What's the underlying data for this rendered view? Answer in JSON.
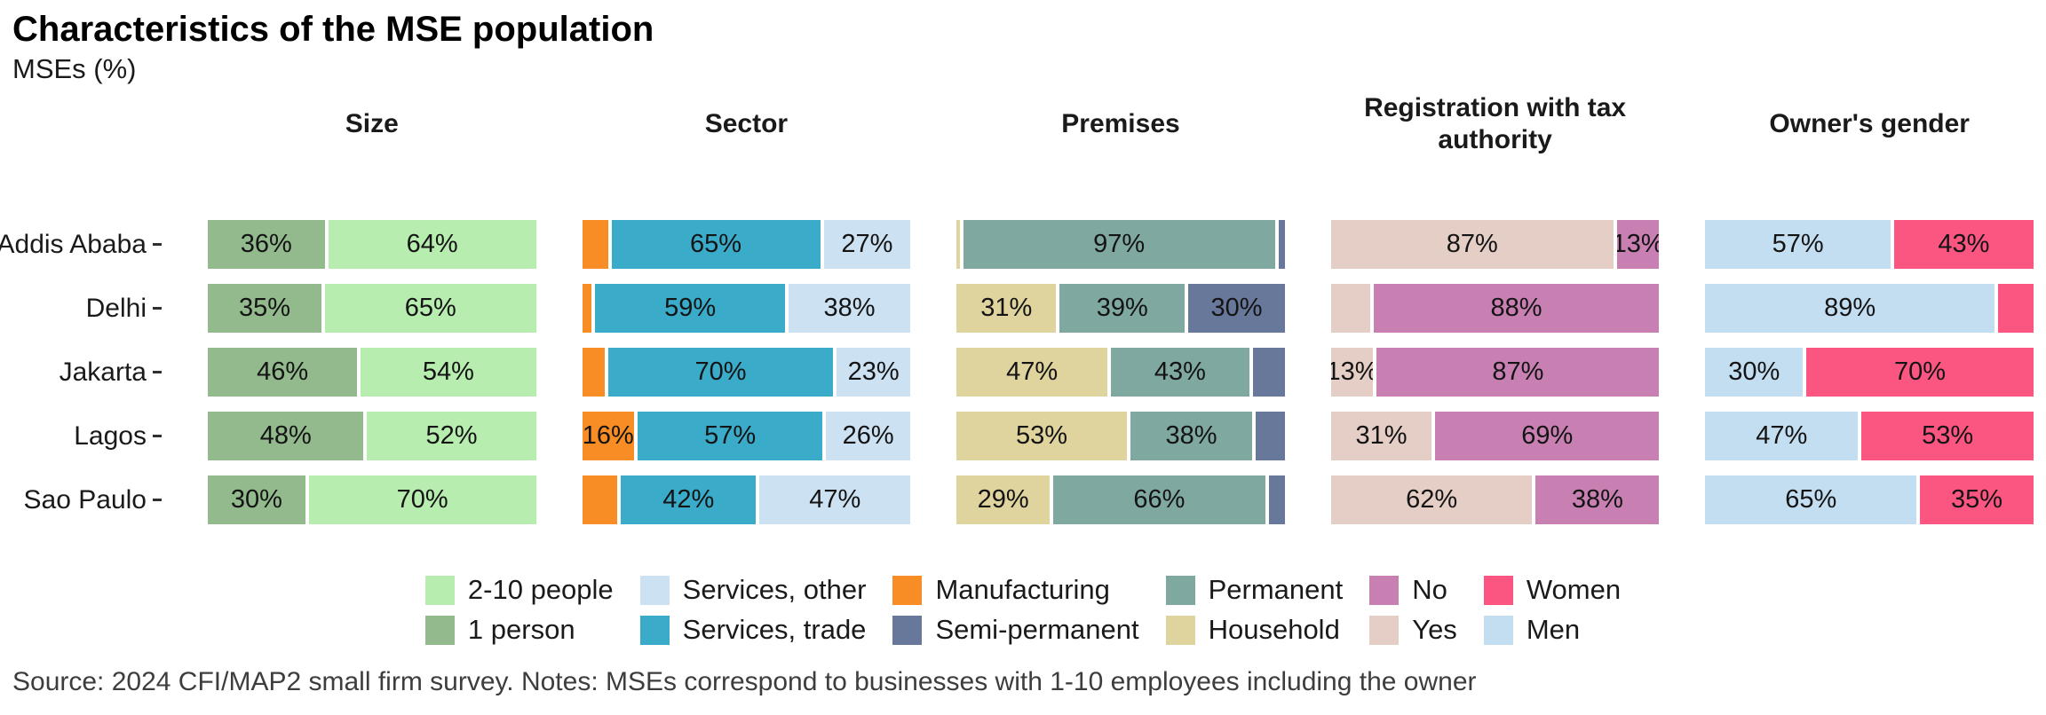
{
  "header": {
    "title": "Characteristics of the MSE population",
    "subtitle": "MSEs (%)"
  },
  "footer": {
    "source": "Source: 2024 CFI/MAP2 small firm survey. Notes: MSEs correspond to businesses with 1-10 employees including the owner"
  },
  "chart_data": {
    "type": "bar",
    "variant": "horizontal-stacked-percent",
    "unit": "%",
    "title": "Characteristics of the MSE population",
    "subtitle": "MSEs (%)",
    "categories": [
      "Addis Ababa",
      "Delhi",
      "Jakarta",
      "Lagos",
      "Sao Paulo"
    ],
    "axes": {
      "x_range": [
        0,
        100
      ],
      "grid": false,
      "value_labels_inside": true
    },
    "panels": [
      {
        "title": "Size",
        "series": [
          {
            "name": "1 person",
            "color": "#92BA8D"
          },
          {
            "name": "2-10 people",
            "color": "#B7EDAE"
          }
        ],
        "rows": [
          {
            "values": [
              36,
              64
            ],
            "labels": [
              "36%",
              "64%"
            ]
          },
          {
            "values": [
              35,
              65
            ],
            "labels": [
              "35%",
              "65%"
            ]
          },
          {
            "values": [
              46,
              54
            ],
            "labels": [
              "46%",
              "54%"
            ]
          },
          {
            "values": [
              48,
              52
            ],
            "labels": [
              "48%",
              "52%"
            ]
          },
          {
            "values": [
              30,
              70
            ],
            "labels": [
              "30%",
              "70%"
            ]
          }
        ]
      },
      {
        "title": "Sector",
        "series": [
          {
            "name": "Manufacturing",
            "color": "#F78D24"
          },
          {
            "name": "Services, trade",
            "color": "#3AACC9"
          },
          {
            "name": "Services, other",
            "color": "#CCE1F2"
          }
        ],
        "rows": [
          {
            "values": [
              8,
              65,
              27
            ],
            "labels": [
              null,
              "65%",
              "27%"
            ]
          },
          {
            "values": [
              3,
              59,
              38
            ],
            "labels": [
              null,
              "59%",
              "38%"
            ]
          },
          {
            "values": [
              7,
              70,
              23
            ],
            "labels": [
              null,
              "70%",
              "23%"
            ]
          },
          {
            "values": [
              16,
              57,
              26
            ],
            "labels": [
              "16%",
              "57%",
              "26%"
            ]
          },
          {
            "values": [
              11,
              42,
              47
            ],
            "labels": [
              null,
              "42%",
              "47%"
            ]
          }
        ]
      },
      {
        "title": "Premises",
        "series": [
          {
            "name": "Household",
            "color": "#DFD39E"
          },
          {
            "name": "Permanent",
            "color": "#7FA8A1"
          },
          {
            "name": "Semi-permanent",
            "color": "#68789B"
          }
        ],
        "rows": [
          {
            "values": [
              1,
              97,
              2
            ],
            "labels": [
              null,
              "97%",
              null
            ]
          },
          {
            "values": [
              31,
              39,
              30
            ],
            "labels": [
              "31%",
              "39%",
              "30%"
            ]
          },
          {
            "values": [
              47,
              43,
              10
            ],
            "labels": [
              "47%",
              "43%",
              null
            ]
          },
          {
            "values": [
              53,
              38,
              9
            ],
            "labels": [
              "53%",
              "38%",
              null
            ]
          },
          {
            "values": [
              29,
              66,
              5
            ],
            "labels": [
              "29%",
              "66%",
              null
            ]
          }
        ]
      },
      {
        "title": "Registration with tax authority",
        "series": [
          {
            "name": "Yes",
            "color": "#E4CEC6"
          },
          {
            "name": "No",
            "color": "#C87FB2"
          }
        ],
        "rows": [
          {
            "values": [
              87,
              13
            ],
            "labels": [
              "87%",
              "13%"
            ]
          },
          {
            "values": [
              12,
              88
            ],
            "labels": [
              null,
              "88%"
            ]
          },
          {
            "values": [
              13,
              87
            ],
            "labels": [
              "13%",
              "87%"
            ]
          },
          {
            "values": [
              31,
              69
            ],
            "labels": [
              "31%",
              "69%"
            ]
          },
          {
            "values": [
              62,
              38
            ],
            "labels": [
              "62%",
              "38%"
            ]
          }
        ]
      },
      {
        "title": "Owner's gender",
        "series": [
          {
            "name": "Men",
            "color": "#C3DDF1"
          },
          {
            "name": "Women",
            "color": "#FB5581"
          }
        ],
        "rows": [
          {
            "values": [
              57,
              43
            ],
            "labels": [
              "57%",
              "43%"
            ]
          },
          {
            "values": [
              89,
              11
            ],
            "labels": [
              "89%",
              null
            ]
          },
          {
            "values": [
              30,
              70
            ],
            "labels": [
              "30%",
              "70%"
            ]
          },
          {
            "values": [
              47,
              53
            ],
            "labels": [
              "47%",
              "53%"
            ]
          },
          {
            "values": [
              65,
              35
            ],
            "labels": [
              "65%",
              "35%"
            ]
          }
        ]
      }
    ],
    "legend": {
      "position": "bottom",
      "rows": 2,
      "entries": [
        {
          "label": "2-10 people",
          "color": "#B7EDAE"
        },
        {
          "label": "1 person",
          "color": "#92BA8D"
        },
        {
          "label": "Services, other",
          "color": "#CCE1F2"
        },
        {
          "label": "Services, trade",
          "color": "#3AACC9"
        },
        {
          "label": "Manufacturing",
          "color": "#F78D24"
        },
        {
          "label": "Semi-permanent",
          "color": "#68789B"
        },
        {
          "label": "Permanent",
          "color": "#7FA8A1"
        },
        {
          "label": "Household",
          "color": "#DFD39E"
        },
        {
          "label": "No",
          "color": "#C87FB2"
        },
        {
          "label": "Yes",
          "color": "#E4CEC6"
        },
        {
          "label": "Women",
          "color": "#FB5581"
        },
        {
          "label": "Men",
          "color": "#C3DDF1"
        }
      ]
    }
  }
}
